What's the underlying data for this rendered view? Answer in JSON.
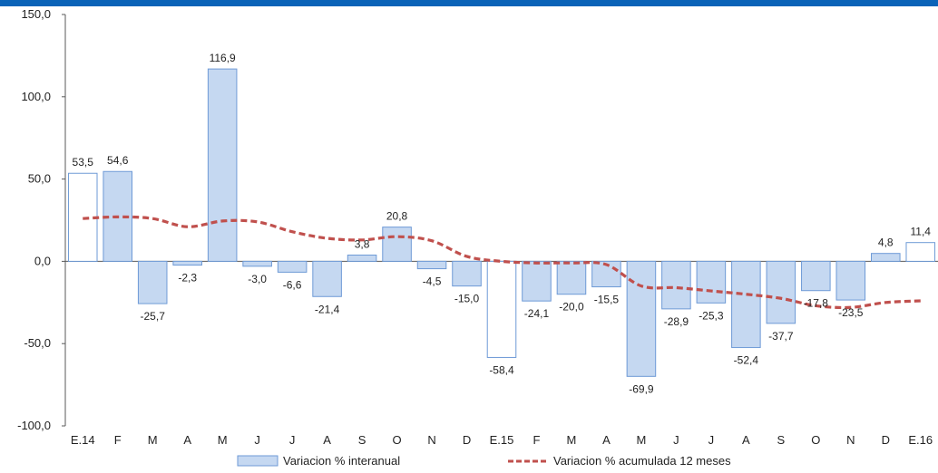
{
  "colors": {
    "top_bar": "#0a63b8",
    "bar_fill": "#c5d8f1",
    "bar_stroke": "#6e9ad6",
    "open_bar_fill": "#ffffff",
    "line": "#c0504d",
    "axis": "#595959"
  },
  "chart_data": {
    "type": "bar",
    "categories": [
      "E.14",
      "F",
      "M",
      "A",
      "M",
      "J",
      "J",
      "A",
      "S",
      "O",
      "N",
      "D",
      "E.15",
      "F",
      "M",
      "A",
      "M",
      "J",
      "J",
      "A",
      "S",
      "O",
      "N",
      "D",
      "E.16"
    ],
    "ylim": [
      -100,
      150
    ],
    "yticks": [
      -100,
      -50,
      0,
      50,
      100,
      150
    ],
    "ytick_labels": [
      "-100,0",
      "-50,0",
      "0,0",
      "50,0",
      "100,0",
      "150,0"
    ],
    "grid": false,
    "legend_position": "bottom",
    "series": [
      {
        "name": "Variacion % interanual",
        "kind": "bar",
        "values": [
          53.5,
          54.6,
          -25.7,
          -2.3,
          116.9,
          -3.0,
          -6.6,
          -21.4,
          3.8,
          20.8,
          -4.5,
          -15.0,
          -58.4,
          -24.1,
          -20.0,
          -15.5,
          -69.9,
          -28.9,
          -25.3,
          -52.4,
          -37.7,
          -17.8,
          -23.5,
          4.8,
          11.4
        ],
        "labels": [
          "53,5",
          "54,6",
          "-25,7",
          "-2,3",
          "116,9",
          "-3,0",
          "-6,6",
          "-21,4",
          "3,8",
          "20,8",
          "-4,5",
          "-15,0",
          "-58,4",
          "-24,1",
          "-20,0",
          "-15,5",
          "-69,9",
          "-28,9",
          "-25,3",
          "-52,4",
          "-37,7",
          "-17,8",
          "-23,5",
          "4,8",
          "11,4"
        ],
        "outlined_only": [
          "E.14",
          "E.15",
          "E.16"
        ]
      },
      {
        "name": "Variacion % acumulada 12 meses",
        "kind": "line",
        "style": "dashed",
        "values": [
          26,
          27,
          26,
          21,
          24.5,
          24,
          18,
          14,
          13,
          15,
          12.5,
          3,
          0,
          -1,
          -1,
          -2,
          -15,
          -16,
          -18,
          -20,
          -22.5,
          -27,
          -28,
          -25,
          -24
        ]
      }
    ]
  }
}
